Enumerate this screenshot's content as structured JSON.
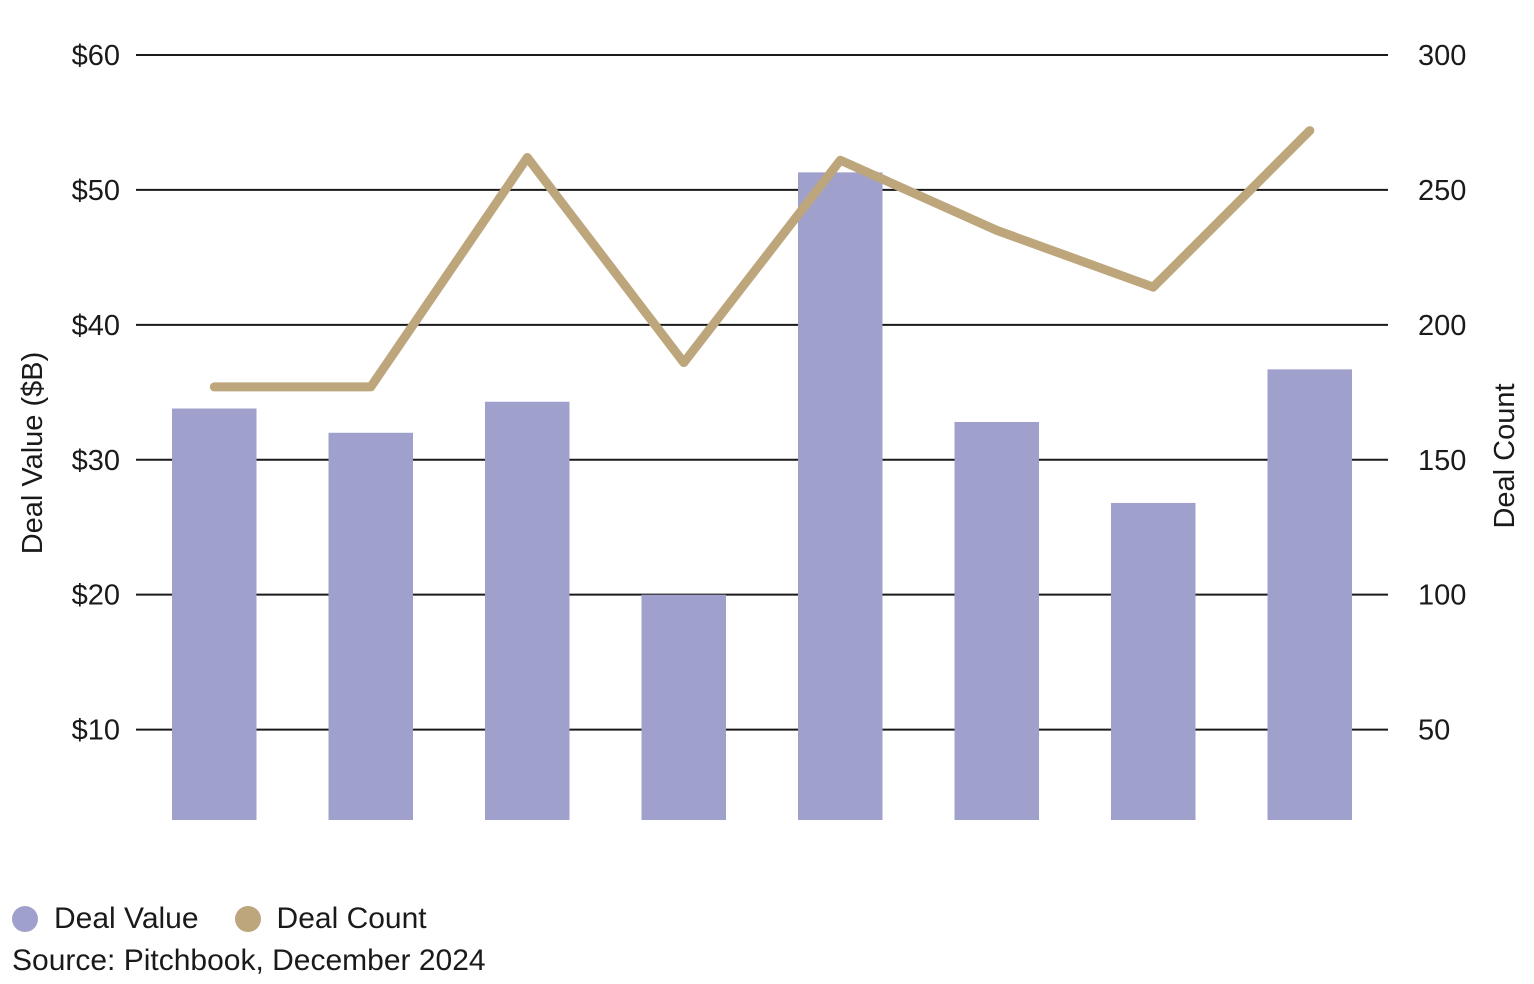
{
  "chart_data": {
    "type": "bar",
    "categories": [
      "",
      "",
      "",
      "",
      "",
      "",
      "",
      ""
    ],
    "series": [
      {
        "name": "Deal Value",
        "kind": "bar",
        "axis": "left",
        "color": "#a0a0cc",
        "values": [
          33.8,
          32.0,
          34.3,
          20.0,
          51.3,
          32.8,
          26.8,
          36.7
        ]
      },
      {
        "name": "Deal Count",
        "kind": "line",
        "axis": "right",
        "color": "#bda67c",
        "values": [
          177,
          177,
          262,
          186,
          261,
          235,
          214,
          272
        ]
      }
    ],
    "y_left": {
      "label": "Deal Value ($B)",
      "lim": [
        3.3,
        60
      ],
      "ticks": [
        10,
        20,
        30,
        40,
        50,
        60
      ],
      "tick_labels": [
        "$10",
        "$20",
        "$30",
        "$40",
        "$50",
        "$60"
      ]
    },
    "y_right": {
      "label": "Deal Count",
      "lim": [
        16.5,
        300
      ],
      "ticks": [
        50,
        100,
        150,
        200,
        250,
        300
      ],
      "tick_labels": [
        "50",
        "100",
        "150",
        "200",
        "250",
        "300"
      ]
    },
    "grid": true,
    "legend": {
      "placement": "bottom-left",
      "items": [
        {
          "label": "Deal Value",
          "color": "#a0a0cc"
        },
        {
          "label": "Deal Count",
          "color": "#bda67c"
        }
      ]
    },
    "source": "Source: Pitchbook, December 2024"
  }
}
